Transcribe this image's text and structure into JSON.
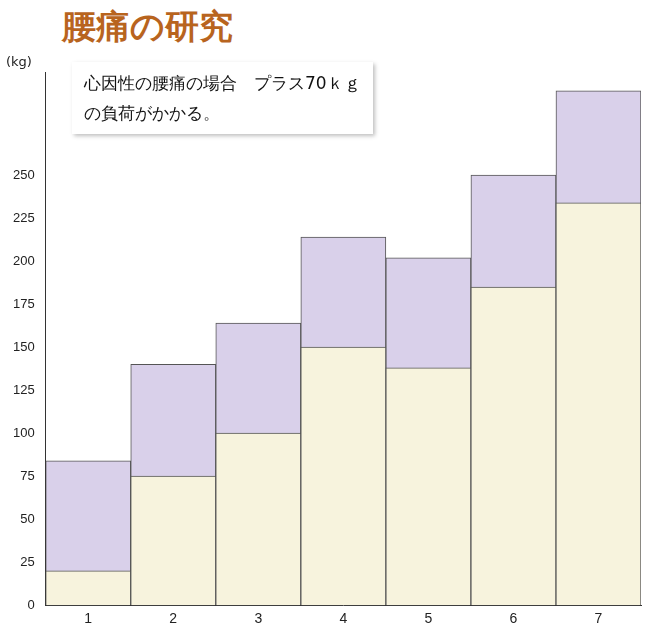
{
  "chart_data": {
    "type": "bar",
    "title": "腰痛の研究",
    "annotation": [
      "心因性の腰痛の場合　プラス70ｋｇ",
      "の負荷がかかる。"
    ],
    "y_label": "(kg)",
    "categories": [
      "1",
      "2",
      "3",
      "4",
      "5",
      "6",
      "7"
    ],
    "series": [
      {
        "color": "#d9d0ea",
        "values": [
          84,
          140,
          164,
          214,
          202,
          250,
          299
        ]
      },
      {
        "color": "#f7f3dd",
        "values": [
          20,
          75,
          100,
          150,
          138,
          185,
          234
        ]
      }
    ],
    "ylim": [
      0,
      310
    ],
    "yticks": [
      0,
      25,
      50,
      75,
      100,
      125,
      150,
      175,
      200,
      225,
      250
    ],
    "grid": false
  }
}
